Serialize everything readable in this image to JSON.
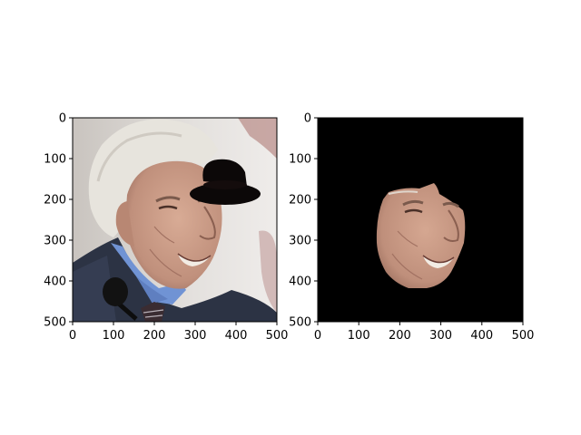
{
  "figure": {
    "background": "#ffffff"
  },
  "chart_data": [
    {
      "type": "image",
      "title": "",
      "xlabel": "",
      "ylabel": "",
      "xlim": [
        0,
        500
      ],
      "ylim": [
        500,
        0
      ],
      "xticks": [
        0,
        100,
        200,
        300,
        400,
        500
      ],
      "yticks": [
        0,
        100,
        200,
        300,
        400,
        500
      ],
      "grid": false,
      "image_content": "photo of an elderly white-haired man in a dark suit, light blue shirt and striped tie, with a black bowler-hat overlay and a black microphone"
    },
    {
      "type": "image",
      "title": "",
      "xlabel": "",
      "ylabel": "",
      "xlim": [
        0,
        500
      ],
      "ylim": [
        500,
        0
      ],
      "xticks": [
        0,
        100,
        200,
        300,
        400,
        500
      ],
      "yticks": [
        0,
        100,
        200,
        300,
        400,
        500
      ],
      "grid": false,
      "image_content": "segmented face region of the same man on a black background"
    }
  ],
  "colors": {
    "skin": "#c89a86",
    "skin_shadow": "#9a6c5c",
    "hair": "#e6e3dc",
    "suit": "#2a3040",
    "shirt": "#6f8fd0",
    "hat": "#0c0808",
    "mask_bg": "#000000"
  }
}
